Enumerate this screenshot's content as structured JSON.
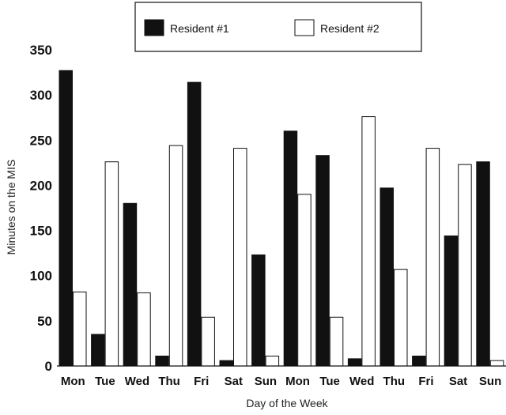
{
  "chart_data": {
    "type": "bar",
    "categories": [
      "Mon",
      "Tue",
      "Wed",
      "Thu",
      "Fri",
      "Sat",
      "Sun",
      "Mon",
      "Tue",
      "Wed",
      "Thu",
      "Fri",
      "Sat",
      "Sun"
    ],
    "series": [
      {
        "name": "Resident #1",
        "color": "#111111",
        "values": [
          327,
          35,
          180,
          11,
          314,
          6,
          123,
          260,
          233,
          8,
          197,
          11,
          144,
          226
        ]
      },
      {
        "name": "Resident #2",
        "color": "#ffffff",
        "values": [
          82,
          226,
          81,
          244,
          54,
          241,
          11,
          190,
          54,
          276,
          107,
          241,
          223,
          6
        ]
      }
    ],
    "yticks": [
      0,
      50,
      100,
      150,
      200,
      250,
      300,
      350
    ],
    "ylim": [
      0,
      350
    ],
    "xlabel": "Day of the Week",
    "ylabel": "Minutes on the MIS",
    "legend_position": "top",
    "grid": false
  }
}
